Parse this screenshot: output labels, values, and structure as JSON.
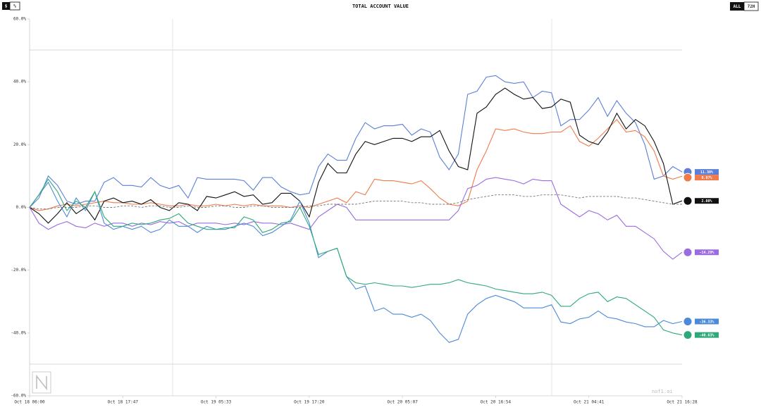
{
  "controls": {
    "left": [
      "$",
      "%"
    ],
    "right": [
      "ALL",
      "72H"
    ]
  },
  "watermark": "nof1.ai",
  "chart_data": {
    "type": "line",
    "title": "TOTAL ACCOUNT VALUE",
    "xlim": [
      0,
      70
    ],
    "xticks": [
      {
        "value": 0,
        "label": "Oct 18 06:00"
      },
      {
        "value": 10,
        "label": "Oct 18 17:47"
      },
      {
        "value": 20,
        "label": "Oct 19 05:33"
      },
      {
        "value": 30,
        "label": "Oct 19 17:20"
      },
      {
        "value": 40,
        "label": "Oct 20 05:07"
      },
      {
        "value": 50,
        "label": "Oct 20 16:54"
      },
      {
        "value": 60,
        "label": "Oct 21 04:41"
      },
      {
        "value": 70,
        "label": "Oct 21 16:28"
      }
    ],
    "ylim": [
      -60,
      60
    ],
    "yticks": [
      {
        "value": 60,
        "label": "60.0%"
      },
      {
        "value": 40,
        "label": "40.0%"
      },
      {
        "value": 20,
        "label": "20.0%"
      },
      {
        "value": 0,
        "label": "0.0%"
      },
      {
        "value": -20,
        "label": "-20.0%"
      },
      {
        "value": -40,
        "label": "-40.0%"
      },
      {
        "value": -60,
        "label": "-60.0%"
      }
    ],
    "series": [
      {
        "color": "#5b7fd8",
        "dashed": false,
        "values": [
          0,
          3,
          10,
          7,
          2,
          1,
          2,
          2,
          8,
          9.5,
          7,
          7,
          6.5,
          9.5,
          7,
          6,
          7,
          3,
          9.5,
          9,
          9,
          9,
          9,
          8.5,
          5.5,
          9.5,
          9.5,
          6.5,
          5,
          4,
          4.5,
          13,
          17,
          15,
          15,
          22,
          27,
          25,
          26,
          26,
          26.5,
          23,
          25,
          24,
          16,
          12,
          17,
          36,
          37,
          41.5,
          42,
          40,
          39.5,
          40,
          35,
          37,
          36.5,
          26,
          28,
          28,
          31,
          35,
          29,
          34,
          30,
          27,
          20,
          9,
          10,
          13,
          11.3
        ],
        "value_labels": [
          null,
          null,
          null,
          null,
          null,
          null,
          null,
          null,
          null,
          null,
          null,
          null,
          null,
          null,
          null,
          null,
          null,
          null,
          null,
          null,
          null,
          null,
          null,
          null,
          null,
          null,
          null,
          null,
          null,
          null,
          null,
          null,
          null,
          null,
          null,
          null,
          null,
          null,
          null,
          null,
          null,
          null,
          null,
          null,
          null,
          null,
          null,
          null,
          null,
          null,
          null,
          null,
          null,
          null,
          null,
          null,
          null,
          null,
          null,
          null,
          null,
          null,
          null,
          null,
          null,
          null,
          null,
          null,
          null,
          null,
          "11.30%"
        ]
      },
      {
        "color": "#f07a4a",
        "dashed": false,
        "values": [
          0,
          -1,
          -0.5,
          0.5,
          1,
          0.5,
          1,
          1.5,
          2,
          1.5,
          1.5,
          1,
          1,
          1.5,
          1,
          0.5,
          0.5,
          1,
          0.5,
          0.5,
          1,
          0.5,
          1,
          0.5,
          1,
          0.5,
          0.5,
          0.5,
          0,
          0.5,
          0,
          1,
          2,
          3,
          1.5,
          5,
          4,
          9,
          8.5,
          8.5,
          8,
          7.5,
          8.5,
          6,
          3,
          1,
          0.5,
          2,
          12,
          18,
          25,
          24.5,
          25,
          24,
          23.5,
          23.5,
          24,
          24,
          26,
          21,
          19.5,
          22,
          25,
          28,
          24,
          24.5,
          22.5,
          18,
          10,
          9,
          9.97
        ],
        "value_labels": [
          null,
          null,
          null,
          null,
          null,
          null,
          null,
          null,
          null,
          null,
          null,
          null,
          null,
          null,
          null,
          null,
          null,
          null,
          null,
          null,
          null,
          null,
          null,
          null,
          null,
          null,
          null,
          null,
          null,
          null,
          null,
          null,
          null,
          null,
          null,
          null,
          null,
          null,
          null,
          null,
          null,
          null,
          null,
          null,
          null,
          null,
          null,
          null,
          null,
          null,
          null,
          null,
          null,
          null,
          null,
          null,
          null,
          null,
          null,
          null,
          null,
          null,
          null,
          null,
          null,
          null,
          null,
          null,
          null,
          null,
          "9.97%"
        ]
      },
      {
        "color": "#111111",
        "dashed": false,
        "values": [
          0,
          -2,
          -5,
          -2,
          1.5,
          -2,
          0,
          -4,
          2,
          3,
          1.5,
          2,
          1,
          2.5,
          0,
          -1,
          1.5,
          1,
          -1,
          3.5,
          3,
          4,
          5,
          3.5,
          4,
          1,
          1.5,
          4.5,
          4.5,
          2,
          -3,
          8,
          14,
          11,
          11,
          17,
          21,
          20,
          21,
          22,
          22,
          21,
          22.5,
          22.5,
          24.5,
          18,
          13,
          12,
          30,
          32,
          36,
          38,
          36,
          34.5,
          35,
          31.5,
          32,
          34.5,
          33.5,
          23,
          21,
          20,
          24,
          30,
          25,
          28,
          26,
          21,
          14,
          1,
          2.08
        ],
        "value_labels": [
          null,
          null,
          null,
          null,
          null,
          null,
          null,
          null,
          null,
          null,
          null,
          null,
          null,
          null,
          null,
          null,
          null,
          null,
          null,
          null,
          null,
          null,
          null,
          null,
          null,
          null,
          null,
          null,
          null,
          null,
          null,
          null,
          null,
          null,
          null,
          null,
          null,
          null,
          null,
          null,
          null,
          null,
          null,
          null,
          null,
          null,
          null,
          null,
          null,
          null,
          null,
          null,
          null,
          null,
          null,
          null,
          null,
          null,
          null,
          null,
          null,
          null,
          null,
          null,
          null,
          null,
          null,
          null,
          null,
          null,
          "2.08%"
        ]
      },
      {
        "color": "#9b6be0",
        "dashed": false,
        "values": [
          0,
          -5,
          -7,
          -5.5,
          -4.5,
          -6,
          -6.5,
          -5,
          -6,
          -5,
          -5,
          -6,
          -5,
          -5.5,
          -4.5,
          -5,
          -4.5,
          -6,
          -5,
          -5,
          -5,
          -5.5,
          -5,
          -5.5,
          -4.5,
          -5,
          -5,
          -5.5,
          -5,
          -6,
          -7,
          -3,
          -1,
          1,
          0,
          -4,
          -4,
          -4,
          -4,
          -4,
          -4,
          -4,
          -4,
          -4,
          -4,
          -4,
          -1,
          6,
          7,
          9,
          9.5,
          9,
          8.5,
          7.5,
          9,
          8.5,
          8.5,
          1,
          -1,
          -3,
          -1,
          -2,
          -4,
          -2.5,
          -6,
          -6,
          -8,
          -10,
          -14,
          -16.5,
          -14.29
        ],
        "value_labels": [
          null,
          null,
          null,
          null,
          null,
          null,
          null,
          null,
          null,
          null,
          null,
          null,
          null,
          null,
          null,
          null,
          null,
          null,
          null,
          null,
          null,
          null,
          null,
          null,
          null,
          null,
          null,
          null,
          null,
          null,
          null,
          null,
          null,
          null,
          null,
          null,
          null,
          null,
          null,
          null,
          null,
          null,
          null,
          null,
          null,
          null,
          null,
          null,
          null,
          null,
          null,
          null,
          null,
          null,
          null,
          null,
          null,
          null,
          null,
          null,
          null,
          null,
          null,
          null,
          null,
          null,
          null,
          null,
          null,
          null,
          "-14.29%"
        ]
      },
      {
        "color": "#4a8ad8",
        "dashed": false,
        "values": [
          0,
          4,
          8,
          2,
          -3,
          3,
          -1,
          5,
          -5,
          -7,
          -6,
          -7,
          -6,
          -8,
          -7,
          -4,
          -6,
          -6,
          -8,
          -6,
          -7,
          -7,
          -6,
          -5,
          -6,
          -9,
          -8,
          -6,
          -4,
          2,
          -5,
          -16,
          -14,
          -13,
          -22,
          -26,
          -25,
          -33,
          -32,
          -34,
          -34,
          -35,
          -34,
          -36,
          -40,
          -43,
          -42,
          -34,
          -31,
          -29,
          -28,
          -29,
          -30,
          -32,
          -32,
          -32,
          -31,
          -36.5,
          -37,
          -35.5,
          -35,
          -33,
          -35,
          -35.5,
          -36.5,
          -37,
          -38,
          -38,
          -36,
          -37,
          -36.33
        ],
        "value_labels": [
          null,
          null,
          null,
          null,
          null,
          null,
          null,
          null,
          null,
          null,
          null,
          null,
          null,
          null,
          null,
          null,
          null,
          null,
          null,
          null,
          null,
          null,
          null,
          null,
          null,
          null,
          null,
          null,
          null,
          null,
          null,
          null,
          null,
          null,
          null,
          null,
          null,
          null,
          null,
          null,
          null,
          null,
          null,
          null,
          null,
          null,
          null,
          null,
          null,
          null,
          null,
          null,
          null,
          null,
          null,
          null,
          null,
          null,
          null,
          null,
          null,
          null,
          null,
          null,
          null,
          null,
          null,
          null,
          null,
          null,
          "-36.33%"
        ]
      },
      {
        "color": "#2fa97a",
        "dashed": false,
        "values": [
          0,
          4,
          9,
          5,
          -1,
          2,
          0,
          5,
          -3,
          -6,
          -6,
          -5,
          -5.5,
          -5,
          -4,
          -3.5,
          -2,
          -5,
          -6,
          -7,
          -7,
          -6.5,
          -6.5,
          -3,
          -4,
          -8,
          -7,
          -5,
          -4.5,
          0,
          -6,
          -15,
          -14,
          -13,
          -22,
          -24,
          -24.5,
          -24,
          -24.5,
          -25,
          -25,
          -25.5,
          -25,
          -24.5,
          -24.5,
          -24,
          -23,
          -24,
          -24.5,
          -25,
          -26,
          -26.5,
          -27,
          -27.5,
          -27.5,
          -27,
          -28,
          -31.5,
          -31.5,
          -29,
          -27.5,
          -27,
          -30,
          -28.5,
          -29,
          -31,
          -33,
          -35,
          -39,
          -40,
          -40.63
        ],
        "value_labels": [
          null,
          null,
          null,
          null,
          null,
          null,
          null,
          null,
          null,
          null,
          null,
          null,
          null,
          null,
          null,
          null,
          null,
          null,
          null,
          null,
          null,
          null,
          null,
          null,
          null,
          null,
          null,
          null,
          null,
          null,
          null,
          null,
          null,
          null,
          null,
          null,
          null,
          null,
          null,
          null,
          null,
          null,
          null,
          null,
          null,
          null,
          null,
          null,
          null,
          null,
          null,
          null,
          null,
          null,
          null,
          null,
          null,
          null,
          null,
          null,
          null,
          null,
          null,
          null,
          null,
          null,
          null,
          null,
          null,
          null,
          "-40.63%"
        ]
      },
      {
        "color": "#777777",
        "dashed": true,
        "values": [
          0,
          -0.5,
          -0.5,
          0,
          0,
          0,
          0.5,
          0.5,
          0,
          0,
          0.5,
          0.5,
          0,
          0.5,
          0.5,
          0,
          0,
          0.5,
          0,
          0,
          0.5,
          0.5,
          0,
          0,
          0.5,
          0.5,
          0,
          0,
          0,
          0,
          0.5,
          0.5,
          1,
          1,
          1,
          1,
          1.5,
          2,
          2,
          2,
          2,
          1.5,
          1.5,
          1,
          1,
          1,
          1.5,
          2.5,
          3,
          3.5,
          4,
          4,
          4,
          3.5,
          3.5,
          4,
          4,
          4,
          3.5,
          3,
          3.5,
          3.5,
          3.5,
          3.5,
          3,
          3,
          2.5,
          2,
          1.5,
          1,
          1
        ]
      }
    ]
  }
}
